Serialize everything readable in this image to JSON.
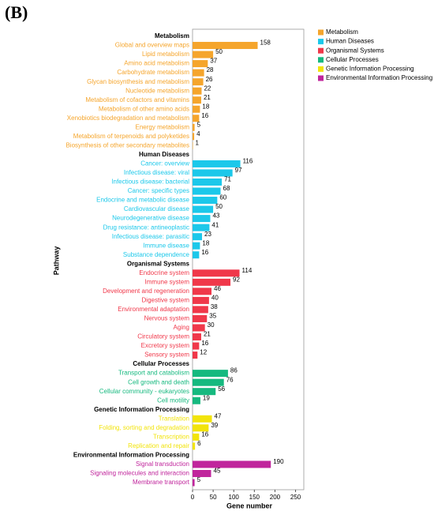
{
  "chart_data": {
    "type": "bar",
    "orientation": "horizontal",
    "title": "(B)",
    "xlabel": "Gene number",
    "ylabel": "Pathway",
    "xlim": [
      0,
      270
    ],
    "xticks": [
      0,
      50,
      100,
      150,
      200,
      250
    ],
    "legend": "top-right",
    "series": [
      {
        "name": "Metabolism",
        "color": "#f5a52c",
        "categories": [
          "Global and overview maps",
          "Lipid metabolism",
          "Amino acid metabolism",
          "Carbohydrate metabolism",
          "Glycan biosynthesis and metabolism",
          "Nucleotide metabolism",
          "Metabolism of cofactors and vitamins",
          "Metabolism of other amino acids",
          "Xenobiotics biodegradation and metabolism",
          "Energy metabolism",
          "Metabolism of terpenoids and polyketides",
          "Biosynthesis of other secondary metabolites"
        ],
        "values": [
          158,
          50,
          37,
          28,
          26,
          22,
          21,
          18,
          16,
          5,
          4,
          1
        ]
      },
      {
        "name": "Human Diseases",
        "color": "#1cc8ea",
        "categories": [
          "Cancer: overview",
          "Infectious disease: viral",
          "Infectious disease: bacterial",
          "Cancer: specific types",
          "Endocrine and metabolic disease",
          "Cardiovascular disease",
          "Neurodegenerative disease",
          "Drug resistance: antineoplastic",
          "Infectious disease: parasitic",
          "Immune disease",
          "Substance dependence"
        ],
        "values": [
          116,
          97,
          71,
          68,
          60,
          50,
          43,
          41,
          23,
          18,
          16
        ]
      },
      {
        "name": "Organismal Systems",
        "color": "#f0384a",
        "categories": [
          "Endocrine system",
          "Immune system",
          "Development and regeneration",
          "Digestive system",
          "Environmental adaptation",
          "Nervous system",
          "Aging",
          "Circulatory system",
          "Excretory system",
          "Sensory system"
        ],
        "values": [
          114,
          92,
          46,
          40,
          38,
          35,
          30,
          21,
          16,
          12
        ]
      },
      {
        "name": "Cellular Processes",
        "color": "#16b97f",
        "categories": [
          "Transport and catabolism",
          "Cell growth and death",
          "Cellular community - eukaryotes",
          "Cell motility"
        ],
        "values": [
          86,
          76,
          56,
          19
        ]
      },
      {
        "name": "Genetic Information Processing",
        "color": "#f2e40c",
        "categories": [
          "Translation",
          "Folding, sorting and degradation",
          "Transcription",
          "Replication and repair"
        ],
        "values": [
          47,
          39,
          16,
          6
        ]
      },
      {
        "name": "Environmental Information Processing",
        "color": "#c0259c",
        "categories": [
          "Signal transduction",
          "Signaling molecules and interaction",
          "Membrane transport"
        ],
        "values": [
          190,
          45,
          5
        ]
      }
    ]
  }
}
